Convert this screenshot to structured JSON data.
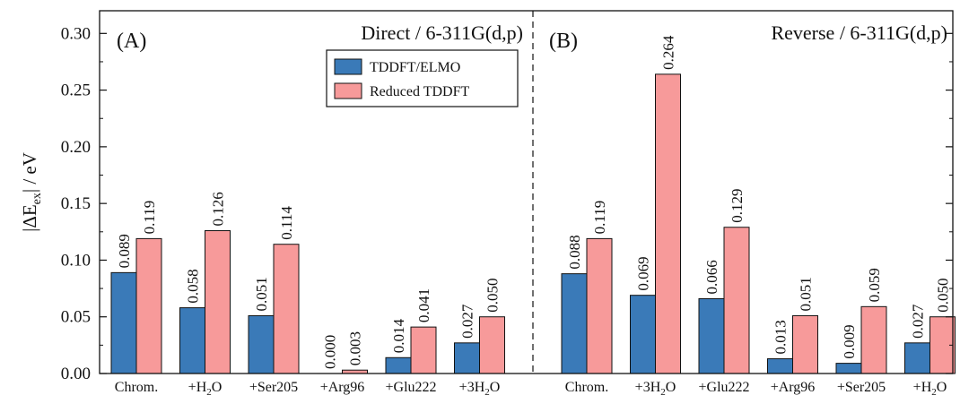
{
  "chart_data": {
    "type": "bar",
    "ylabel": "|ΔE_ex| / eV",
    "ylim": [
      0,
      0.32
    ],
    "yticks": [
      "0.00",
      "0.05",
      "0.10",
      "0.15",
      "0.20",
      "0.25",
      "0.30"
    ],
    "series_names": [
      "TDDFT/ELMO",
      "Reduced TDDFT"
    ],
    "colors": {
      "TDDFT/ELMO": "#3a7ab8",
      "Reduced TDDFT": "#f79a9a"
    },
    "legend_position": "top-center of panel A",
    "panels": [
      {
        "tag": "(A)",
        "title": "Direct / 6-311G(d,p)",
        "categories": [
          "Chrom.",
          "+H2O",
          "+Ser205",
          "+Arg96",
          "+Glu222",
          "+3H2O"
        ],
        "series": [
          {
            "name": "TDDFT/ELMO",
            "values": [
              0.089,
              0.058,
              0.051,
              0.0,
              0.014,
              0.027
            ],
            "labels": [
              "0.089",
              "0.058",
              "0.051",
              "0.000",
              "0.014",
              "0.027"
            ]
          },
          {
            "name": "Reduced TDDFT",
            "values": [
              0.119,
              0.126,
              0.114,
              0.003,
              0.041,
              0.05
            ],
            "labels": [
              "0.119",
              "0.126",
              "0.114",
              "0.003",
              "0.041",
              "0.050"
            ]
          }
        ]
      },
      {
        "tag": "(B)",
        "title": "Reverse / 6-311G(d,p)",
        "categories": [
          "Chrom.",
          "+3H2O",
          "+Glu222",
          "+Arg96",
          "+Ser205",
          "+H2O"
        ],
        "series": [
          {
            "name": "TDDFT/ELMO",
            "values": [
              0.088,
              0.069,
              0.066,
              0.013,
              0.009,
              0.027
            ],
            "labels": [
              "0.088",
              "0.069",
              "0.066",
              "0.013",
              "0.009",
              "0.027"
            ]
          },
          {
            "name": "Reduced TDDFT",
            "values": [
              0.119,
              0.264,
              0.129,
              0.051,
              0.059,
              0.05
            ],
            "labels": [
              "0.119",
              "0.264",
              "0.129",
              "0.051",
              "0.059",
              "0.050"
            ]
          }
        ]
      }
    ]
  }
}
